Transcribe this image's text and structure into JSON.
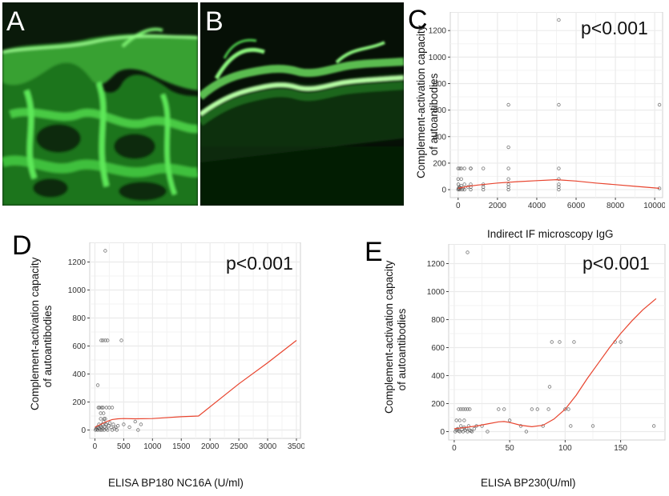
{
  "panels": {
    "A": "A",
    "B": "B",
    "C": "C",
    "D": "D",
    "E": "E"
  },
  "ylabel_line1": "Complement-activation capacity",
  "ylabel_line2": "of autoantibodies",
  "pvalue": "p<0.001",
  "colors": {
    "fluorescence": "#22cc22",
    "fit_line": "#e8442e",
    "points": "#555555",
    "grid": "#ebebeb"
  },
  "chart_data": [
    {
      "id": "C",
      "type": "scatter",
      "xlabel": "Indirect IF microscopy IgG",
      "ylabel": "Complement-activation capacity of autoantibodies",
      "xlim": [
        -400,
        10400
      ],
      "ylim": [
        -60,
        1340
      ],
      "xticks": [
        0,
        2000,
        4000,
        6000,
        8000,
        10000
      ],
      "yticks": [
        0,
        200,
        400,
        600,
        800,
        1000,
        1200
      ],
      "points": [
        [
          0,
          0
        ],
        [
          20,
          10
        ],
        [
          40,
          5
        ],
        [
          60,
          20
        ],
        [
          10,
          40
        ],
        [
          80,
          0
        ],
        [
          100,
          15
        ],
        [
          150,
          30
        ],
        [
          200,
          0
        ],
        [
          250,
          10
        ],
        [
          0,
          160
        ],
        [
          80,
          160
        ],
        [
          160,
          160
        ],
        [
          320,
          160
        ],
        [
          640,
          160
        ],
        [
          0,
          80
        ],
        [
          160,
          80
        ],
        [
          320,
          40
        ],
        [
          320,
          0
        ],
        [
          500,
          20
        ],
        [
          640,
          20
        ],
        [
          640,
          0
        ],
        [
          640,
          40
        ],
        [
          640,
          160
        ],
        [
          1280,
          160
        ],
        [
          1280,
          40
        ],
        [
          1280,
          20
        ],
        [
          1280,
          0
        ],
        [
          2560,
          0
        ],
        [
          2560,
          20
        ],
        [
          2560,
          40
        ],
        [
          2560,
          80
        ],
        [
          2560,
          160
        ],
        [
          2560,
          320
        ],
        [
          2560,
          640
        ],
        [
          5120,
          0
        ],
        [
          5120,
          20
        ],
        [
          5120,
          40
        ],
        [
          5120,
          80
        ],
        [
          5120,
          160
        ],
        [
          5120,
          640
        ],
        [
          5120,
          1280
        ],
        [
          10240,
          10
        ],
        [
          10240,
          640
        ]
      ],
      "fit": [
        [
          0,
          10
        ],
        [
          500,
          25
        ],
        [
          1000,
          35
        ],
        [
          2000,
          50
        ],
        [
          3000,
          60
        ],
        [
          4000,
          68
        ],
        [
          5000,
          75
        ],
        [
          6000,
          65
        ],
        [
          7000,
          50
        ],
        [
          8000,
          38
        ],
        [
          9000,
          25
        ],
        [
          10240,
          10
        ]
      ]
    },
    {
      "id": "D",
      "type": "scatter",
      "xlabel": "ELISA BP180 NC16A (U/ml)",
      "ylabel": "Complement-activation capacity of autoantibodies",
      "xlim": [
        -90,
        3570
      ],
      "ylim": [
        -60,
        1340
      ],
      "xticks": [
        0,
        500,
        1000,
        1500,
        2000,
        2500,
        3000,
        3500
      ],
      "yticks": [
        0,
        200,
        400,
        600,
        800,
        1000,
        1200
      ],
      "points": [
        [
          10,
          0
        ],
        [
          20,
          10
        ],
        [
          30,
          5
        ],
        [
          40,
          20
        ],
        [
          50,
          0
        ],
        [
          60,
          15
        ],
        [
          70,
          40
        ],
        [
          80,
          10
        ],
        [
          90,
          0
        ],
        [
          100,
          30
        ],
        [
          110,
          20
        ],
        [
          120,
          0
        ],
        [
          130,
          40
        ],
        [
          140,
          10
        ],
        [
          150,
          60
        ],
        [
          160,
          0
        ],
        [
          170,
          20
        ],
        [
          180,
          80
        ],
        [
          190,
          40
        ],
        [
          200,
          10
        ],
        [
          220,
          0
        ],
        [
          240,
          30
        ],
        [
          260,
          50
        ],
        [
          280,
          20
        ],
        [
          300,
          0
        ],
        [
          320,
          40
        ],
        [
          340,
          10
        ],
        [
          360,
          20
        ],
        [
          380,
          0
        ],
        [
          400,
          30
        ],
        [
          50,
          320
        ],
        [
          60,
          160
        ],
        [
          80,
          160
        ],
        [
          100,
          80
        ],
        [
          120,
          160
        ],
        [
          140,
          160
        ],
        [
          160,
          80
        ],
        [
          200,
          160
        ],
        [
          250,
          160
        ],
        [
          300,
          160
        ],
        [
          110,
          640
        ],
        [
          140,
          640
        ],
        [
          180,
          640
        ],
        [
          220,
          640
        ],
        [
          460,
          640
        ],
        [
          180,
          1280
        ],
        [
          500,
          40
        ],
        [
          600,
          20
        ],
        [
          700,
          60
        ],
        [
          750,
          0
        ],
        [
          800,
          40
        ],
        [
          100,
          120
        ],
        [
          150,
          120
        ],
        [
          200,
          40
        ]
      ],
      "fit": [
        [
          0,
          20
        ],
        [
          100,
          40
        ],
        [
          200,
          60
        ],
        [
          300,
          75
        ],
        [
          400,
          80
        ],
        [
          500,
          82
        ],
        [
          700,
          80
        ],
        [
          1000,
          82
        ],
        [
          1500,
          95
        ],
        [
          1800,
          100
        ],
        [
          2500,
          330
        ],
        [
          3000,
          480
        ],
        [
          3500,
          640
        ]
      ]
    },
    {
      "id": "E",
      "type": "scatter",
      "xlabel": "ELISA BP230(U/ml)",
      "ylabel": "Complement-activation capacity of autoantibodies",
      "xlim": [
        -5,
        190
      ],
      "ylim": [
        -60,
        1340
      ],
      "xticks": [
        0,
        50,
        100,
        150
      ],
      "yticks": [
        0,
        200,
        400,
        600,
        800,
        1000,
        1200
      ],
      "points": [
        [
          1,
          0
        ],
        [
          2,
          10
        ],
        [
          3,
          20
        ],
        [
          4,
          5
        ],
        [
          5,
          0
        ],
        [
          6,
          40
        ],
        [
          7,
          15
        ],
        [
          8,
          0
        ],
        [
          9,
          30
        ],
        [
          10,
          10
        ],
        [
          11,
          20
        ],
        [
          12,
          0
        ],
        [
          13,
          40
        ],
        [
          14,
          10
        ],
        [
          15,
          5
        ],
        [
          16,
          0
        ],
        [
          18,
          20
        ],
        [
          20,
          40
        ],
        [
          2,
          80
        ],
        [
          4,
          160
        ],
        [
          6,
          160
        ],
        [
          8,
          160
        ],
        [
          10,
          160
        ],
        [
          12,
          160
        ],
        [
          14,
          160
        ],
        [
          5,
          80
        ],
        [
          9,
          80
        ],
        [
          12,
          1280
        ],
        [
          25,
          40
        ],
        [
          30,
          0
        ],
        [
          40,
          160
        ],
        [
          45,
          160
        ],
        [
          50,
          80
        ],
        [
          60,
          40
        ],
        [
          65,
          0
        ],
        [
          70,
          160
        ],
        [
          75,
          160
        ],
        [
          80,
          40
        ],
        [
          85,
          160
        ],
        [
          86,
          320
        ],
        [
          88,
          640
        ],
        [
          95,
          640
        ],
        [
          100,
          160
        ],
        [
          103,
          160
        ],
        [
          105,
          40
        ],
        [
          108,
          640
        ],
        [
          125,
          40
        ],
        [
          145,
          640
        ],
        [
          150,
          640
        ],
        [
          180,
          40
        ]
      ],
      "fit": [
        [
          0,
          20
        ],
        [
          10,
          30
        ],
        [
          20,
          40
        ],
        [
          30,
          55
        ],
        [
          40,
          70
        ],
        [
          45,
          72
        ],
        [
          50,
          65
        ],
        [
          60,
          45
        ],
        [
          70,
          35
        ],
        [
          80,
          45
        ],
        [
          90,
          90
        ],
        [
          100,
          160
        ],
        [
          110,
          260
        ],
        [
          120,
          380
        ],
        [
          130,
          490
        ],
        [
          140,
          600
        ],
        [
          150,
          700
        ],
        [
          160,
          790
        ],
        [
          170,
          870
        ],
        [
          182,
          950
        ]
      ]
    }
  ]
}
